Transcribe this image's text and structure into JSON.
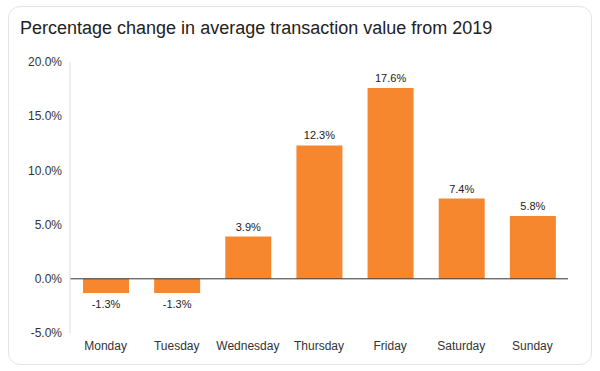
{
  "chart_data": {
    "type": "bar",
    "title": "Percentage change in average transaction value from 2019",
    "categories": [
      "Monday",
      "Tuesday",
      "Wednesday",
      "Thursday",
      "Friday",
      "Saturday",
      "Sunday"
    ],
    "values": [
      -1.3,
      -1.3,
      3.9,
      12.3,
      17.6,
      7.4,
      5.8
    ],
    "value_labels": [
      "-1.3%",
      "-1.3%",
      "3.9%",
      "12.3%",
      "17.6%",
      "7.4%",
      "5.8%"
    ],
    "color": "#F7872E",
    "ylim": [
      -5,
      20
    ],
    "yticks": [
      {
        "value": -5,
        "label": "-5.0%"
      },
      {
        "value": 0,
        "label": "0.0%"
      },
      {
        "value": 5,
        "label": "5.0%"
      },
      {
        "value": 10,
        "label": "10.0%"
      },
      {
        "value": 15,
        "label": "15.0%"
      },
      {
        "value": 20,
        "label": "20.0%"
      }
    ],
    "grid": false,
    "data_labels": true
  }
}
